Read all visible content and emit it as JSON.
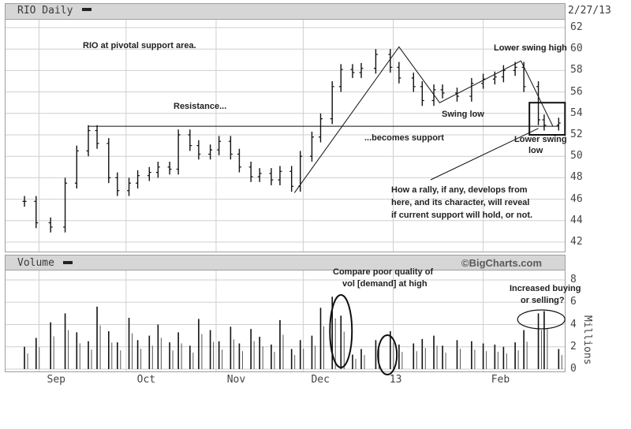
{
  "header": {
    "ticker_label": "RIO Daily",
    "date": "2/27/13"
  },
  "volume_header": {
    "label": "Volume",
    "watermark": "©BigCharts.com"
  },
  "annotations": {
    "pivot": "RIO at pivotal support area.",
    "resistance": "Resistance...",
    "becomes_support": "...becomes support",
    "lower_swing_high": "Lower swing high",
    "swing_low": "Swing low",
    "lower_swing_low_1": "Lower swing",
    "lower_swing_low_2": "low",
    "rally_1": "How a rally, if any, develops from",
    "rally_2": "here, and its character, will reveal",
    "rally_3": "if current support will hold, or not.",
    "compare_1": "Compare poor quality of",
    "compare_2": "vol [demand] at high",
    "increased_1": "Increased buying",
    "increased_2": "or selling?"
  },
  "x_labels": [
    "Sep",
    "Oct",
    "Nov",
    "Dec",
    "13",
    "Feb"
  ],
  "price_ticks": [
    "62",
    "60",
    "58",
    "56",
    "54",
    "52",
    "50",
    "48",
    "46",
    "44",
    "42"
  ],
  "volume_ticks": [
    "8",
    "6",
    "4",
    "2",
    "0"
  ],
  "volume_unit": "Millions",
  "chart_data": [
    {
      "type": "ohlc",
      "title": "RIO Daily",
      "ylim": [
        42,
        62
      ],
      "x": [
        "2012-08-27",
        "2012-08-31",
        "2012-09-05",
        "2012-09-10",
        "2012-09-14",
        "2012-09-18",
        "2012-09-21",
        "2012-09-25",
        "2012-09-28",
        "2012-10-02",
        "2012-10-05",
        "2012-10-09",
        "2012-10-12",
        "2012-10-16",
        "2012-10-19",
        "2012-10-23",
        "2012-10-26",
        "2012-10-30",
        "2012-11-02",
        "2012-11-06",
        "2012-11-09",
        "2012-11-13",
        "2012-11-16",
        "2012-11-20",
        "2012-11-23",
        "2012-11-27",
        "2012-11-30",
        "2012-12-04",
        "2012-12-07",
        "2012-12-11",
        "2012-12-14",
        "2012-12-18",
        "2012-12-21",
        "2012-12-26",
        "2012-12-31",
        "2013-01-03",
        "2013-01-08",
        "2013-01-11",
        "2013-01-15",
        "2013-01-18",
        "2013-01-23",
        "2013-01-28",
        "2013-02-01",
        "2013-02-05",
        "2013-02-08",
        "2013-02-12",
        "2013-02-15",
        "2013-02-20",
        "2013-02-22",
        "2013-02-27"
      ],
      "close": [
        45.8,
        43.8,
        43.4,
        47.5,
        50.5,
        52.4,
        51.2,
        48.0,
        46.8,
        47.5,
        48.2,
        48.5,
        49.0,
        48.8,
        52.0,
        51.0,
        50.2,
        50.6,
        51.4,
        50.2,
        49.0,
        48.1,
        48.4,
        47.8,
        48.6,
        47.2,
        50.0,
        51.8,
        53.5,
        56.5,
        58.1,
        57.8,
        58.2,
        59.5,
        58.3,
        57.3,
        56.5,
        55.2,
        56.2,
        55.9,
        55.6,
        56.8,
        57.2,
        57.4,
        58.0,
        58.3,
        56.5,
        53.4,
        52.9,
        53.1
      ],
      "swing_points": [
        {
          "label": "Lower swing high",
          "x": "2013-02-14",
          "price": 58.9
        },
        {
          "label": "Swing low",
          "x": "2013-01-17",
          "price": 55.0
        },
        {
          "label": "Lower swing low",
          "x": "2013-02-25",
          "price": 52.8
        }
      ],
      "support_resistance_level": 52.8
    },
    {
      "type": "bar",
      "title": "Volume",
      "ylabel": "Millions",
      "ylim": [
        0,
        8
      ],
      "values": [
        2.0,
        2.8,
        4.2,
        5.0,
        3.3,
        2.5,
        5.6,
        3.4,
        2.4,
        4.6,
        2.6,
        3.0,
        4.0,
        2.4,
        3.3,
        2.1,
        4.5,
        3.5,
        2.5,
        3.8,
        2.3,
        3.6,
        2.9,
        2.2,
        4.4,
        1.8,
        2.6,
        3.0,
        5.5,
        6.5,
        4.8,
        1.3,
        1.8,
        2.6,
        3.4,
        2.2,
        2.3,
        2.7,
        3.0,
        2.1,
        2.6,
        2.5,
        2.3,
        2.2,
        2.0,
        2.4,
        3.5,
        5.0,
        5.2,
        1.8
      ]
    }
  ]
}
